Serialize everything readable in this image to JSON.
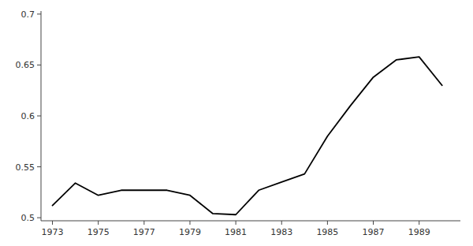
{
  "chart_data": {
    "type": "line",
    "x": [
      1973,
      1974,
      1975,
      1976,
      1977,
      1978,
      1979,
      1980,
      1981,
      1982,
      1983,
      1984,
      1985,
      1986,
      1987,
      1988,
      1989,
      1990
    ],
    "y": [
      0.512,
      0.534,
      0.522,
      0.527,
      0.527,
      0.527,
      0.522,
      0.504,
      0.503,
      0.527,
      0.535,
      0.543,
      0.58,
      0.61,
      0.638,
      0.655,
      0.658,
      0.63
    ],
    "color": "#000000",
    "xlim": [
      1972.5,
      1990.8
    ],
    "ylim": [
      0.497,
      0.703
    ],
    "xticks": [
      1973,
      1975,
      1977,
      1979,
      1981,
      1983,
      1985,
      1987,
      1989
    ],
    "yticks": [
      0.5,
      0.55,
      0.6,
      0.65,
      0.7
    ],
    "grid": false
  }
}
